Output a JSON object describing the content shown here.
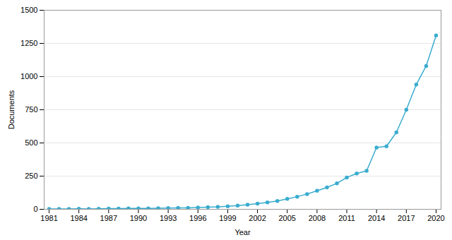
{
  "chart_data": {
    "type": "line",
    "x": [
      1981,
      1982,
      1983,
      1984,
      1985,
      1986,
      1987,
      1988,
      1989,
      1990,
      1991,
      1992,
      1993,
      1994,
      1995,
      1996,
      1997,
      1998,
      1999,
      2000,
      2001,
      2002,
      2003,
      2004,
      2005,
      2006,
      2007,
      2008,
      2009,
      2010,
      2011,
      2012,
      2013,
      2014,
      2015,
      2016,
      2017,
      2018,
      2019,
      2020
    ],
    "values": [
      2,
      3,
      2,
      4,
      3,
      4,
      5,
      5,
      6,
      7,
      7,
      8,
      9,
      10,
      11,
      13,
      16,
      18,
      22,
      28,
      35,
      42,
      52,
      63,
      78,
      95,
      115,
      140,
      165,
      195,
      240,
      270,
      290,
      465,
      475,
      580,
      750,
      940,
      1080,
      1310
    ],
    "color": "#3aaccf",
    "marker": "circle",
    "xlabel": "Year",
    "ylabel": "Documents",
    "xlim": [
      1980.5,
      2020.5
    ],
    "xticks": [
      1981,
      1984,
      1987,
      1990,
      1993,
      1996,
      1999,
      2002,
      2005,
      2008,
      2011,
      2014,
      2017,
      2020
    ],
    "ylim": [
      0,
      1500
    ],
    "yticks": [
      0,
      250,
      500,
      750,
      1000,
      1250,
      1500
    ],
    "grid": true
  }
}
